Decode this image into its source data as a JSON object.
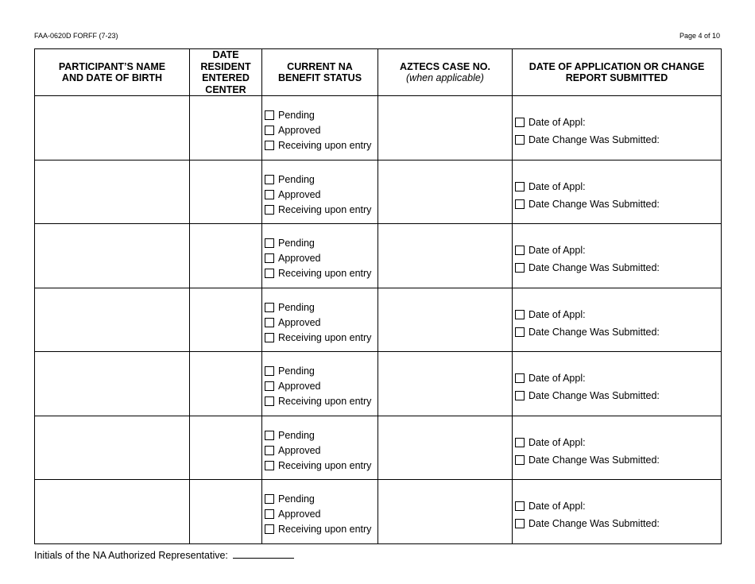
{
  "header": {
    "form_code": "FAA-0620D FORFF (7-23)",
    "page": "Page 4 of 10"
  },
  "columns": {
    "name": "PARTICIPANT’S NAME AND DATE OF BIRTH",
    "date_entered": "DATE RESIDENT ENTERED CENTER",
    "status": "CURRENT NA BENEFIT STATUS",
    "case_no": "AZTECS CASE NO.",
    "case_no_note": "(when applicable)",
    "date_app": "DATE OF APPLICATION OR CHANGE REPORT SUBMITTED"
  },
  "status_options": [
    "Pending",
    "Approved",
    "Receiving upon entry"
  ],
  "date_options": [
    "Date of Appl:",
    "Date Change Was Submitted:"
  ],
  "rows": [
    {
      "name": "",
      "date_entered": "",
      "case_no": "",
      "status_checked": [
        false,
        false,
        false
      ],
      "date_checked": [
        false,
        false
      ]
    },
    {
      "name": "",
      "date_entered": "",
      "case_no": "",
      "status_checked": [
        false,
        false,
        false
      ],
      "date_checked": [
        false,
        false
      ]
    },
    {
      "name": "",
      "date_entered": "",
      "case_no": "",
      "status_checked": [
        false,
        false,
        false
      ],
      "date_checked": [
        false,
        false
      ]
    },
    {
      "name": "",
      "date_entered": "",
      "case_no": "",
      "status_checked": [
        false,
        false,
        false
      ],
      "date_checked": [
        false,
        false
      ]
    },
    {
      "name": "",
      "date_entered": "",
      "case_no": "",
      "status_checked": [
        false,
        false,
        false
      ],
      "date_checked": [
        false,
        false
      ]
    },
    {
      "name": "",
      "date_entered": "",
      "case_no": "",
      "status_checked": [
        false,
        false,
        false
      ],
      "date_checked": [
        false,
        false
      ]
    },
    {
      "name": "",
      "date_entered": "",
      "case_no": "",
      "status_checked": [
        false,
        false,
        false
      ],
      "date_checked": [
        false,
        false
      ]
    }
  ],
  "footer": {
    "initials_label": "Initials of the NA Authorized Representative:",
    "initials_value": ""
  }
}
